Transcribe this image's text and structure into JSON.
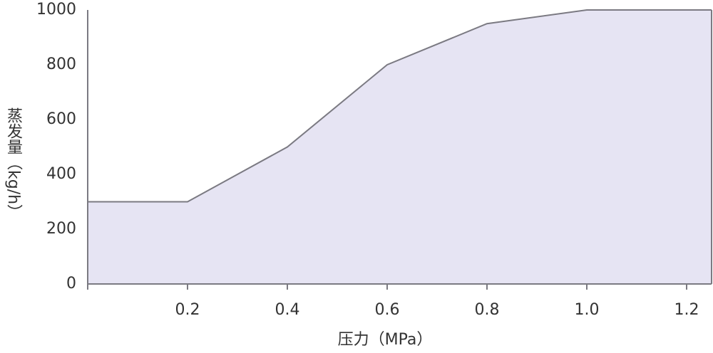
{
  "chart_data": {
    "type": "area",
    "x": [
      0,
      0.2,
      0.4,
      0.6,
      0.8,
      1.0,
      1.25
    ],
    "values": [
      300,
      300,
      500,
      800,
      950,
      1000,
      1000
    ],
    "color": "#e6e4f3",
    "line_color": "#7b7a82",
    "xlim": [
      0,
      1.25
    ],
    "ylim": [
      0,
      1000
    ],
    "xticks": [
      0.2,
      0.4,
      0.6,
      0.8,
      {
        "value": 1,
        "label": "1.0"
      },
      1.2
    ],
    "yticks": [
      0,
      200,
      400,
      600,
      800,
      1000
    ],
    "xlabel": "压力（MPa）",
    "ylabel": "蒸发量（kg/h）"
  }
}
